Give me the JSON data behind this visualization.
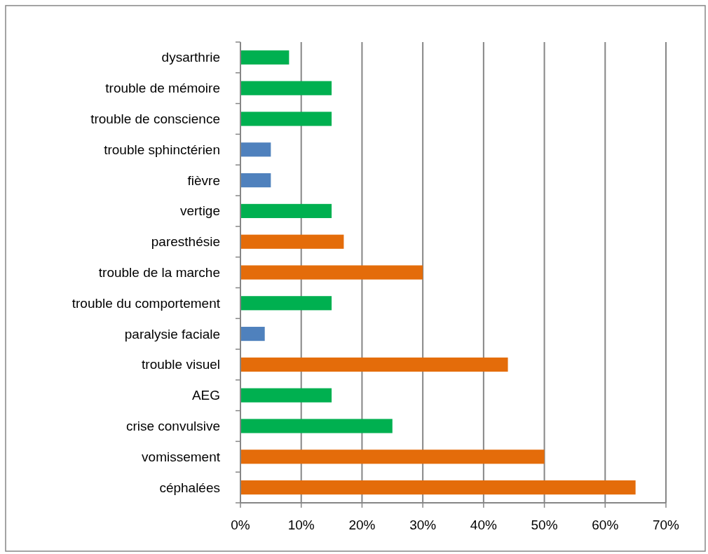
{
  "chart_data": {
    "type": "bar",
    "orientation": "horizontal",
    "categories": [
      "dysarthrie",
      "trouble de mémoire",
      "trouble de conscience",
      "trouble sphinctérien",
      "fièvre",
      "vertige",
      "paresthésie",
      "trouble de la marche",
      "trouble du comportement",
      "paralysie faciale",
      "trouble visuel",
      "AEG",
      "crise convulsive",
      "vomissement",
      "céphalées"
    ],
    "values": [
      8,
      15,
      15,
      5,
      5,
      15,
      17,
      30,
      15,
      4,
      44,
      15,
      25,
      50,
      65
    ],
    "colors": [
      "#00b050",
      "#00b050",
      "#00b050",
      "#4f81bd",
      "#4f81bd",
      "#00b050",
      "#e46c0a",
      "#e46c0a",
      "#00b050",
      "#4f81bd",
      "#e46c0a",
      "#00b050",
      "#00b050",
      "#e46c0a",
      "#e46c0a"
    ],
    "xlim": [
      0,
      70
    ],
    "xticks": [
      {
        "value": 0,
        "label": "0%"
      },
      {
        "value": 10,
        "label": "10%"
      },
      {
        "value": 20,
        "label": "20%"
      },
      {
        "value": 30,
        "label": "30%"
      },
      {
        "value": 40,
        "label": "40%"
      },
      {
        "value": 50,
        "label": "50%"
      },
      {
        "value": 60,
        "label": "60%"
      },
      {
        "value": 70,
        "label": "70%"
      }
    ],
    "grid": "x"
  }
}
